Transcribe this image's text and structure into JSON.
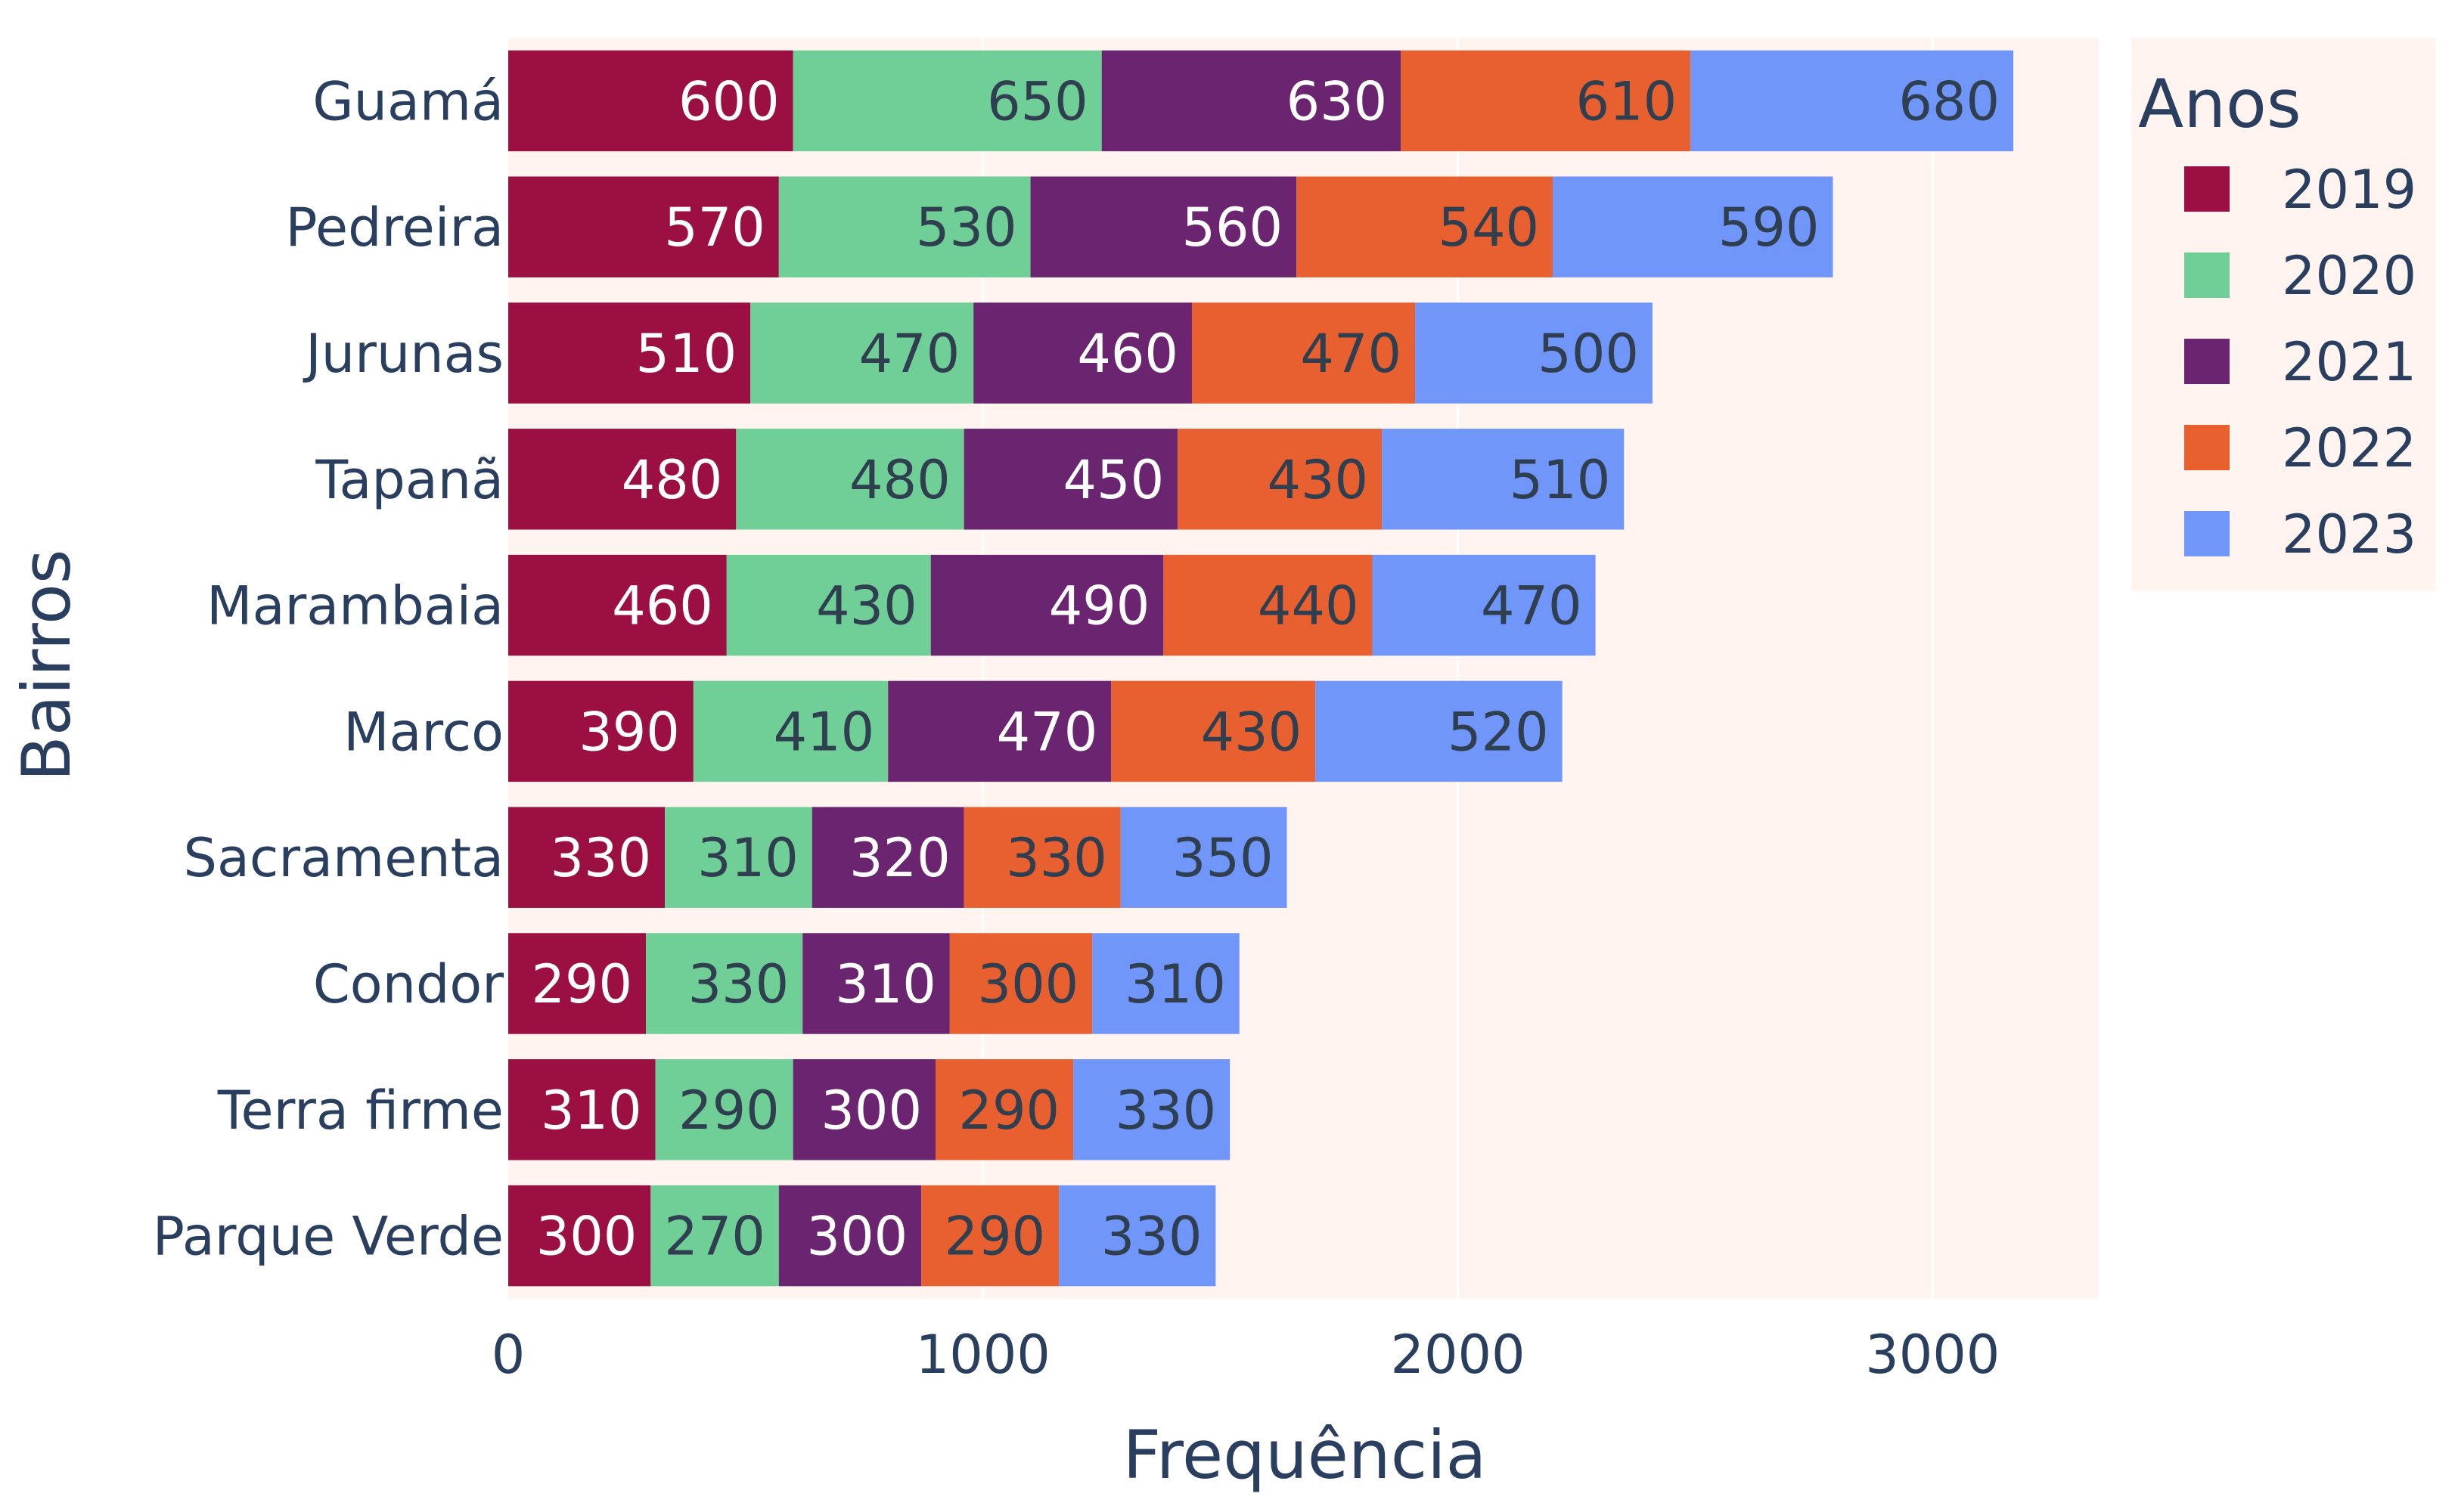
{
  "chart_data": {
    "type": "bar",
    "orientation": "horizontal",
    "barmode": "stack",
    "categories": [
      "Guamá",
      "Pedreira",
      "Jurunas",
      "Tapanã",
      "Marambaia",
      "Marco",
      "Sacramenta",
      "Condor",
      "Terra firme",
      "Parque Verde"
    ],
    "series": [
      {
        "name": "2019",
        "color": "#9b0f42",
        "label_color": "#ffffff",
        "values": [
          600,
          570,
          510,
          480,
          460,
          390,
          330,
          290,
          310,
          300
        ]
      },
      {
        "name": "2020",
        "color": "#6fcf97",
        "label_color": "#2f3f4f",
        "values": [
          650,
          530,
          470,
          480,
          430,
          410,
          310,
          330,
          290,
          270
        ]
      },
      {
        "name": "2021",
        "color": "#6b2470",
        "label_color": "#ffffff",
        "values": [
          630,
          560,
          460,
          450,
          490,
          470,
          320,
          310,
          300,
          300
        ]
      },
      {
        "name": "2022",
        "color": "#e8602f",
        "label_color": "#2f3f4f",
        "values": [
          610,
          540,
          470,
          430,
          440,
          430,
          330,
          300,
          290,
          290
        ]
      },
      {
        "name": "2023",
        "color": "#6f96f8",
        "label_color": "#2f3f4f",
        "values": [
          680,
          590,
          500,
          510,
          470,
          520,
          350,
          310,
          330,
          330
        ]
      }
    ],
    "xlabel": "Frequência",
    "ylabel": "Bairros",
    "xlim": [
      0,
      3350
    ],
    "xticks": [
      0,
      1000,
      2000,
      3000
    ],
    "grid": true,
    "plot_bg": "#fff4ef",
    "legend": {
      "title": "Anos",
      "placement": "right",
      "bg": "#fff4ef"
    }
  }
}
